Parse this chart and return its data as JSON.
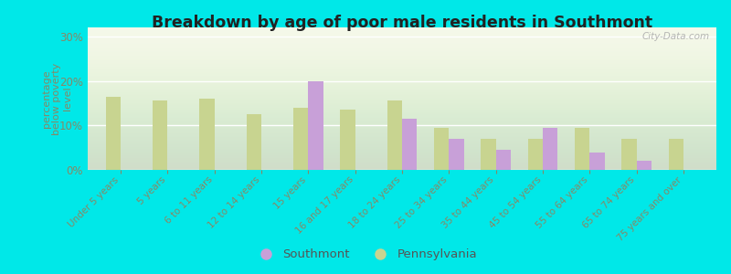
{
  "title": "Breakdown by age of poor male residents in Southmont",
  "ylabel": "percentage\nbelow poverty\nlevel",
  "categories": [
    "Under 5 years",
    "5 years",
    "6 to 11 years",
    "12 to 14 years",
    "15 years",
    "16 and 17 years",
    "18 to 24 years",
    "25 to 34 years",
    "35 to 44 years",
    "45 to 54 years",
    "55 to 64 years",
    "65 to 74 years",
    "75 years and over"
  ],
  "southmont": [
    0,
    0,
    0,
    0,
    20,
    0,
    11.5,
    7,
    4.5,
    9.5,
    4,
    2,
    0
  ],
  "pennsylvania": [
    16.5,
    15.5,
    16,
    12.5,
    14,
    13.5,
    15.5,
    9.5,
    7,
    7,
    9.5,
    7,
    7
  ],
  "southmont_color": "#c8a0d8",
  "pennsylvania_color": "#c8d490",
  "outer_bg": "#00e8e8",
  "plot_bg_top": "#f5f8e8",
  "plot_bg_bottom": "#dff0d0",
  "ylim": [
    0,
    32
  ],
  "yticks": [
    0,
    10,
    20,
    30
  ],
  "ytick_labels": [
    "0%",
    "10%",
    "20%",
    "30%"
  ],
  "tick_color": "#888866",
  "title_color": "#222222",
  "watermark": "City-Data.com"
}
